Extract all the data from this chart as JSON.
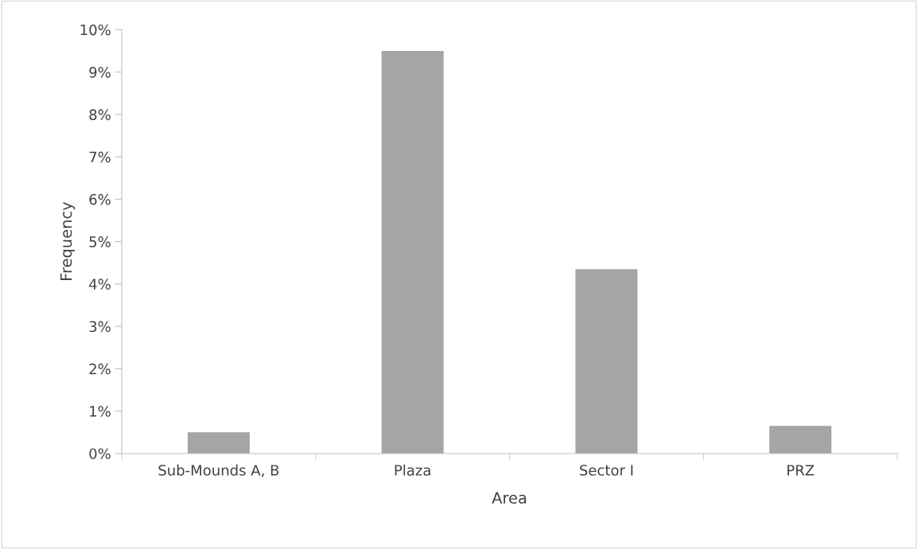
{
  "chart_data": {
    "type": "bar",
    "xlabel": "Area",
    "ylabel": "Frequency",
    "categories": [
      "Sub-Mounds A, B",
      "Plaza",
      "Sector I",
      "PRZ"
    ],
    "values": [
      0.5,
      9.5,
      4.35,
      0.65
    ],
    "color": "#a5a5a5",
    "ylim": [
      0,
      10
    ],
    "yticks": [
      {
        "value": 0,
        "label": "0%"
      },
      {
        "value": 1,
        "label": "1%"
      },
      {
        "value": 2,
        "label": "2%"
      },
      {
        "value": 3,
        "label": "3%"
      },
      {
        "value": 4,
        "label": "4%"
      },
      {
        "value": 5,
        "label": "5%"
      },
      {
        "value": 6,
        "label": "6%"
      },
      {
        "value": 7,
        "label": "7%"
      },
      {
        "value": 8,
        "label": "8%"
      },
      {
        "value": 9,
        "label": "9%"
      },
      {
        "value": 10,
        "label": "10%"
      }
    ],
    "grid": false,
    "legend": false
  }
}
